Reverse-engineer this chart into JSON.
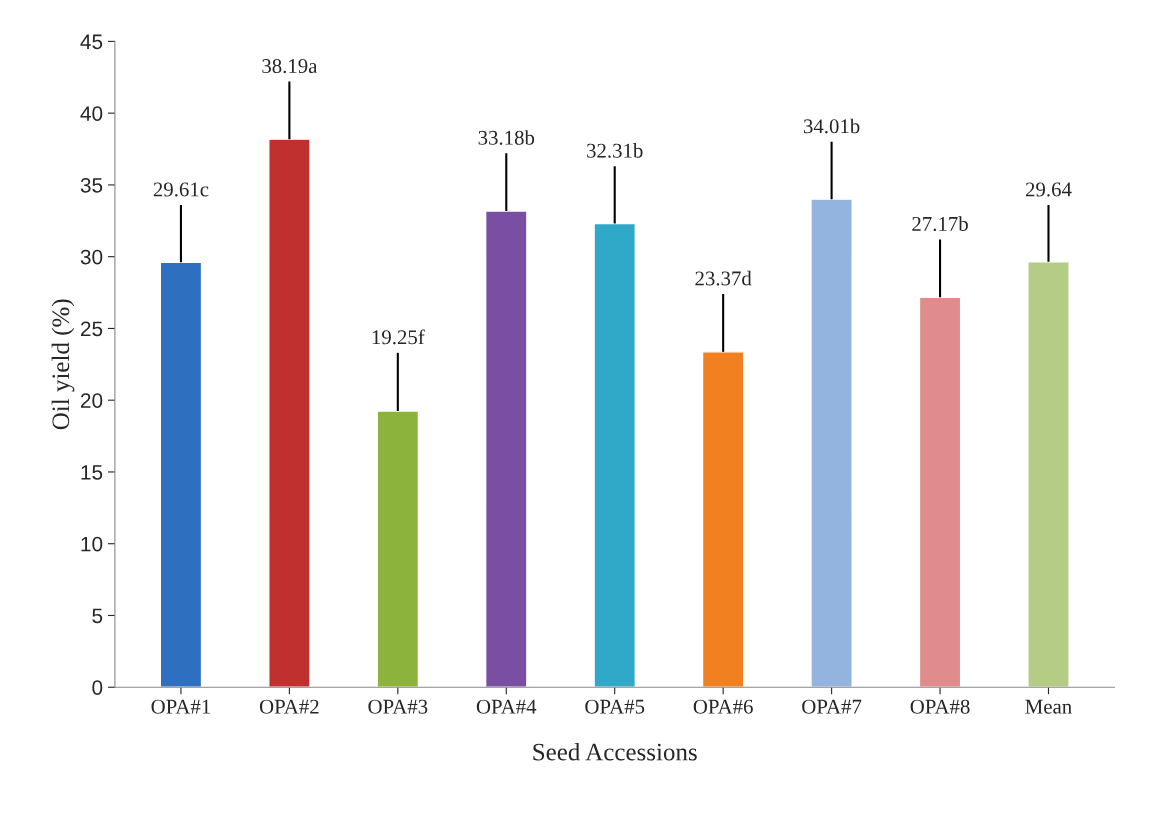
{
  "chart_data": {
    "type": "bar",
    "xlabel": "Seed Accessions",
    "ylabel": "Oil yield (%)",
    "categories": [
      "OPA#1",
      "OPA#2",
      "OPA#3",
      "OPA#4",
      "OPA#5",
      "OPA#6",
      "OPA#7",
      "OPA#8",
      "Mean"
    ],
    "values": [
      29.61,
      38.19,
      19.25,
      33.18,
      32.31,
      23.37,
      34.01,
      27.17,
      29.64
    ],
    "value_labels": [
      "29.61c",
      "38.19a",
      "19.25f",
      "33.18b",
      "32.31b",
      "23.37d",
      "34.01b",
      "27.17b",
      "29.64"
    ],
    "errors": [
      [
        29.61,
        33.6
      ],
      [
        38.19,
        42.2
      ],
      [
        19.25,
        23.3
      ],
      [
        33.18,
        37.2
      ],
      [
        32.31,
        36.3
      ],
      [
        23.37,
        27.4
      ],
      [
        34.01,
        38
      ],
      [
        27.17,
        31.2
      ],
      [
        29.64,
        33.6
      ]
    ],
    "colors": [
      "#2e6fc0",
      "#c0302e",
      "#8cb43c",
      "#7a4ea0",
      "#30a8c8",
      "#f08020",
      "#94b4e0",
      "#e08c8c",
      "#b4cc84"
    ],
    "ylim": [
      0,
      45
    ],
    "yticks": [
      0,
      5,
      10,
      15,
      20,
      25,
      30,
      35,
      40,
      45
    ],
    "grid": false,
    "legend": false
  }
}
